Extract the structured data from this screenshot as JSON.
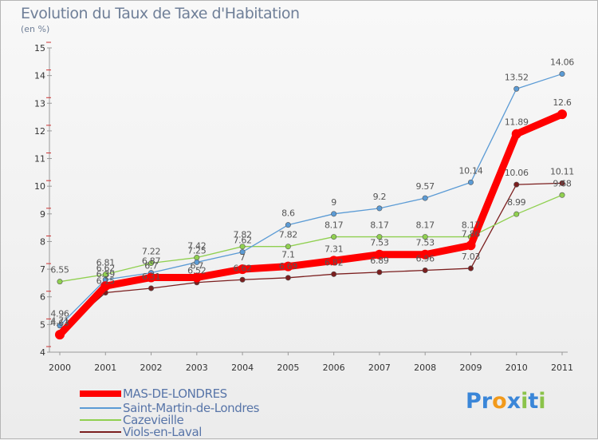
{
  "header": {
    "title": "Evolution du Taux de Taxe d'Habitation",
    "unit": "(en %)"
  },
  "chart_data": {
    "type": "line",
    "title": "Evolution du Taux de Taxe d'Habitation",
    "ylabel": "(en %)",
    "xlabel": "",
    "x": [
      "2000",
      "2001",
      "2002",
      "2003",
      "2004",
      "2005",
      "2006",
      "2007",
      "2008",
      "2009",
      "2010",
      "2011"
    ],
    "ylim": [
      4,
      15
    ],
    "yticks": [
      "4",
      "5",
      "6",
      "7",
      "8",
      "9",
      "10",
      "11",
      "12",
      "13",
      "14",
      "15"
    ],
    "grid": false,
    "legend_position": "bottom-left",
    "series": [
      {
        "name": "MAS-DE-LONDRES",
        "color": "#ff0000",
        "values": [
          4.63,
          6.39,
          6.7,
          6.7,
          7.0,
          7.1,
          7.31,
          7.53,
          7.53,
          7.86,
          11.89,
          12.6
        ],
        "labels": [
          "4.63",
          "6.39",
          "6.7",
          "6.7",
          "7",
          "7.1",
          "7.31",
          "7.53",
          "7.53",
          "7.86",
          "11.89",
          "12.6"
        ]
      },
      {
        "name": "Saint-Martin-de-Londres",
        "color": "#5b9bd5",
        "values": [
          4.96,
          6.62,
          6.87,
          7.25,
          7.62,
          8.6,
          9.0,
          9.2,
          9.57,
          10.14,
          13.52,
          14.06
        ],
        "labels": [
          "4.96",
          "6.62",
          "6.87",
          "7.25",
          "7.62",
          "8.6",
          "9",
          "9.2",
          "9.57",
          "10.14",
          "13.52",
          "14.06"
        ]
      },
      {
        "name": "Cazevieille",
        "color": "#90d050",
        "values": [
          6.55,
          6.81,
          7.22,
          7.42,
          7.82,
          7.82,
          8.17,
          8.17,
          8.17,
          8.17,
          8.99,
          9.68
        ],
        "labels": [
          "6.55",
          "6.81",
          "7.22",
          "7.42",
          "7.82",
          "7.82",
          "8.17",
          "8.17",
          "8.17",
          "8.17",
          "8.99",
          "9.68"
        ]
      },
      {
        "name": "Viols-en-Laval",
        "color": "#7b1e1e",
        "values": [
          4.71,
          6.15,
          6.31,
          6.52,
          6.62,
          6.69,
          6.82,
          6.89,
          6.96,
          7.03,
          10.06,
          10.11
        ],
        "labels": [
          "4.71",
          "6.15",
          "6.31",
          "6.52",
          "6.62",
          "6.69",
          "6.82",
          "6.89",
          "6.96",
          "7.03",
          "10.06",
          "10.11"
        ]
      }
    ]
  },
  "legend": [
    {
      "label": "MAS-DE-LONDRES",
      "color": "#ff0000"
    },
    {
      "label": "Saint-Martin-de-Londres",
      "color": "#5b9bd5"
    },
    {
      "label": "Cazevieille",
      "color": "#90d050"
    },
    {
      "label": "Viols-en-Laval",
      "color": "#7b1e1e"
    }
  ],
  "logo": {
    "letters": [
      "P",
      "r",
      "o",
      "x",
      "i",
      "t",
      "i"
    ],
    "colors": [
      "#3a86d8",
      "#3a86d8",
      "#f29a1b",
      "#3a86d8",
      "#8bc34a",
      "#3a86d8",
      "#8bc34a"
    ]
  }
}
